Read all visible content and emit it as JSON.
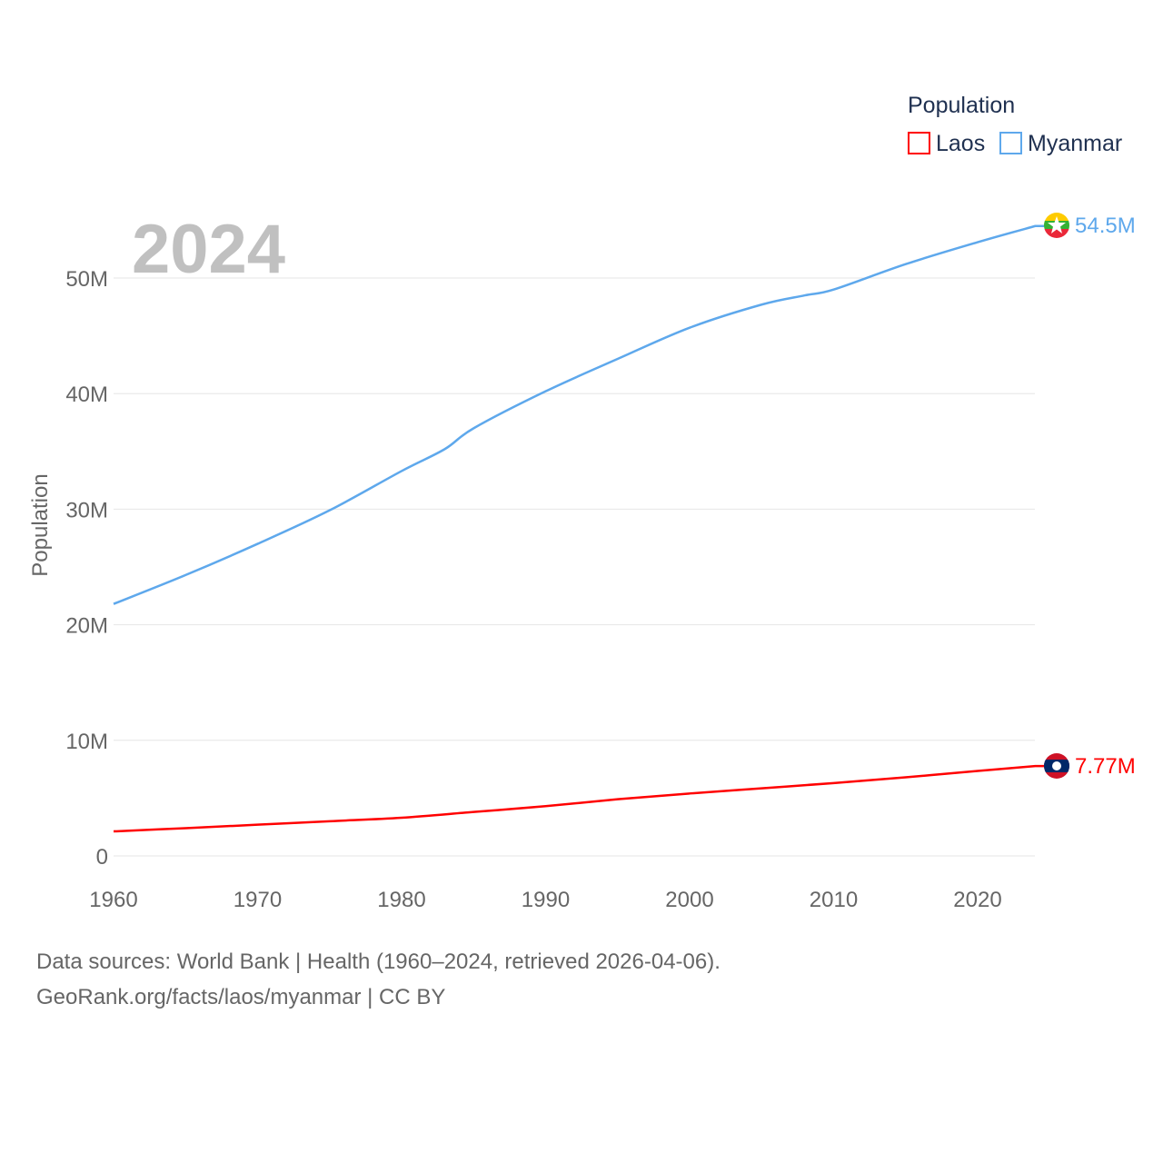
{
  "chart_data": {
    "type": "line",
    "title": "",
    "ylabel": "Population",
    "xlabel": "",
    "year_label": "2024",
    "xlim": [
      1960,
      2024
    ],
    "ylim": [
      0,
      55000000
    ],
    "x_ticks": [
      "1960",
      "1970",
      "1980",
      "1990",
      "2000",
      "2010",
      "2020"
    ],
    "y_ticks": [
      {
        "v": 0,
        "label": "0"
      },
      {
        "v": 10000000,
        "label": "10M"
      },
      {
        "v": 20000000,
        "label": "20M"
      },
      {
        "v": 30000000,
        "label": "30M"
      },
      {
        "v": 40000000,
        "label": "40M"
      },
      {
        "v": 50000000,
        "label": "50M"
      }
    ],
    "grid": true,
    "legend": {
      "title": "Population",
      "placement": "top-right"
    },
    "series": [
      {
        "name": "Laos",
        "color": "#ff0000",
        "end_label": "7.77M",
        "x": [
          1960,
          1965,
          1970,
          1975,
          1980,
          1985,
          1990,
          1995,
          2000,
          2005,
          2010,
          2015,
          2020,
          2024
        ],
        "y": [
          2.12,
          2.4,
          2.7,
          3.0,
          3.3,
          3.8,
          4.3,
          4.9,
          5.4,
          5.85,
          6.3,
          6.8,
          7.35,
          7.77
        ]
      },
      {
        "name": "Myanmar",
        "color": "#5ea8ec",
        "end_label": "54.5M",
        "x": [
          1960,
          1965,
          1970,
          1975,
          1980,
          1983,
          1985,
          1990,
          1995,
          2000,
          2005,
          2008,
          2010,
          2015,
          2020,
          2024
        ],
        "y": [
          21.8,
          24.3,
          27.0,
          29.9,
          33.3,
          35.2,
          37.0,
          40.2,
          43.0,
          45.7,
          47.7,
          48.5,
          49.0,
          51.2,
          53.1,
          54.5
        ]
      }
    ]
  },
  "footer": {
    "line1": "Data sources: World Bank | Health (1960–2024, retrieved 2026-04-06).",
    "line2": "GeoRank.org/facts/laos/myanmar | CC BY"
  }
}
